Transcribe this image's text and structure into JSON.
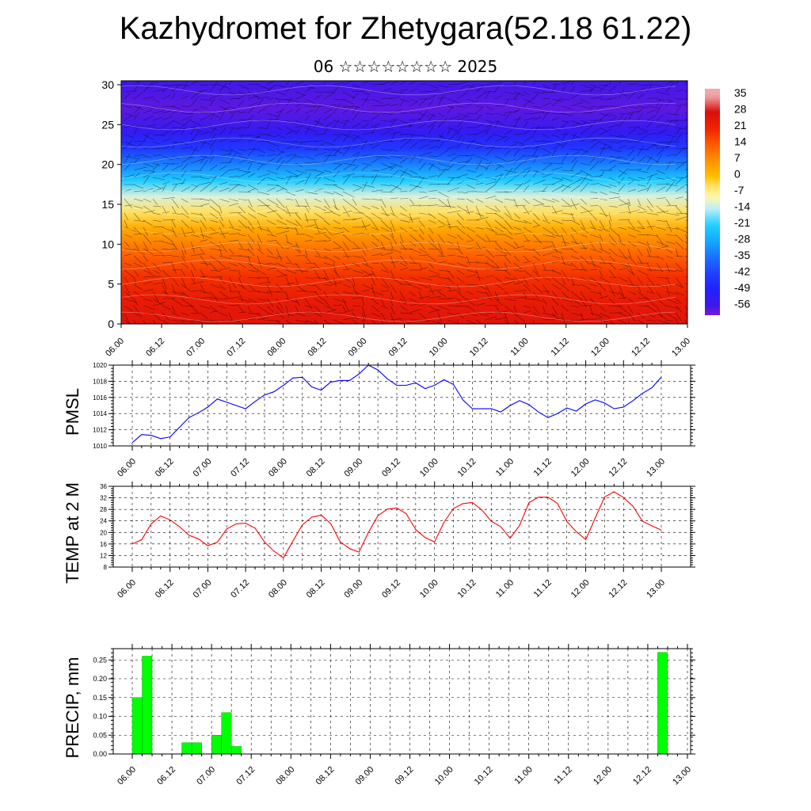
{
  "title": "Kazhydromet for Zhetygara(52.18 61.22)",
  "subtitle": "06 ☆☆☆☆☆☆☆☆ 2025",
  "time_labels": [
    "06.00",
    "06.12",
    "07.00",
    "07.12",
    "08.00",
    "08.12",
    "09.00",
    "09.12",
    "10.00",
    "10.12",
    "11.00",
    "11.12",
    "12.00",
    "12.12",
    "13.00"
  ],
  "colors": {
    "pmsl_line": "#0000ff",
    "temp_line": "#ff0000",
    "precip_bar": "#00ff00"
  },
  "chart_data": [
    {
      "type": "heatmap",
      "title": "",
      "xlabel": "",
      "ylabel": "",
      "x_ticks": [
        "06.00",
        "06.12",
        "07.00",
        "07.12",
        "08.00",
        "08.12",
        "09.00",
        "09.12",
        "10.00",
        "10.12",
        "11.00",
        "11.12",
        "12.00",
        "12.12",
        "13.00"
      ],
      "y_ticks": [
        0,
        5,
        10,
        15,
        20,
        25,
        30
      ],
      "ylim": [
        0,
        30.5
      ],
      "colorbar_labels": [
        "35",
        "28",
        "21",
        "14",
        "7",
        "0",
        "-7",
        "-14",
        "-21",
        "-28",
        "-35",
        "-42",
        "-49",
        "-56"
      ],
      "vertical_profile": [
        {
          "level": 0,
          "value": 26
        },
        {
          "level": 3,
          "value": 23
        },
        {
          "level": 6,
          "value": 19
        },
        {
          "level": 9,
          "value": 12
        },
        {
          "level": 12,
          "value": 3
        },
        {
          "level": 14,
          "value": -4
        },
        {
          "level": 16,
          "value": -12
        },
        {
          "level": 18,
          "value": -22
        },
        {
          "level": 20,
          "value": -33
        },
        {
          "level": 22,
          "value": -44
        },
        {
          "level": 24,
          "value": -53
        },
        {
          "level": 27,
          "value": -58
        },
        {
          "level": 30.5,
          "value": -56
        }
      ],
      "overlay": "wind vectors"
    },
    {
      "type": "line",
      "ylabel": "PMSL",
      "ylim": [
        1010,
        1020
      ],
      "y_ticks": [
        1010,
        1012,
        1014,
        1016,
        1018,
        1020
      ],
      "x_ticks": [
        "06.00",
        "06.12",
        "07.00",
        "07.12",
        "08.00",
        "08.12",
        "09.00",
        "09.12",
        "10.00",
        "10.12",
        "11.00",
        "11.12",
        "12.00",
        "12.12",
        "13.00"
      ],
      "x_step_hours": 3,
      "series": [
        {
          "values": [
            1010.4,
            1011.4,
            1011.3,
            1010.9,
            1011.1,
            1012.3,
            1013.5,
            1014.1,
            1014.8,
            1015.8,
            1015.4,
            1015.0,
            1014.6,
            1015.5,
            1016.3,
            1016.7,
            1017.5,
            1018.4,
            1018.5,
            1017.3,
            1016.9,
            1017.9,
            1018.1,
            1018.1,
            1018.9,
            1020.0,
            1019.4,
            1018.3,
            1017.5,
            1017.5,
            1017.8,
            1017.1,
            1017.5,
            1018.2,
            1017.6,
            1015.7,
            1014.6,
            1014.6,
            1014.6,
            1014.2,
            1015.0,
            1015.6,
            1015.1,
            1014.2,
            1013.5,
            1014.0,
            1014.7,
            1014.3,
            1015.2,
            1015.7,
            1015.3,
            1014.6,
            1014.8,
            1015.6,
            1016.5,
            1017.2,
            1018.5
          ]
        }
      ]
    },
    {
      "type": "line",
      "ylabel": "TEMP at 2 M",
      "ylim": [
        8,
        36
      ],
      "y_ticks": [
        8,
        12,
        16,
        20,
        24,
        28,
        32,
        36
      ],
      "x_ticks": [
        "06.00",
        "06.12",
        "07.00",
        "07.12",
        "08.00",
        "08.12",
        "09.00",
        "09.12",
        "10.00",
        "10.12",
        "11.00",
        "11.12",
        "12.00",
        "12.12",
        "13.00"
      ],
      "x_step_hours": 3,
      "series": [
        {
          "values": [
            16,
            17.5,
            23,
            25.7,
            24.4,
            22,
            19,
            17.8,
            15.4,
            16.6,
            21.2,
            23,
            23.2,
            21.5,
            16.7,
            13.5,
            11.2,
            17,
            22.6,
            25.3,
            26,
            23.1,
            16.8,
            14.4,
            13.2,
            20,
            25.8,
            28.1,
            28.5,
            26.5,
            21,
            18.2,
            16.7,
            23.5,
            28.3,
            30,
            30.4,
            27.8,
            23.9,
            22,
            18,
            22.5,
            30.4,
            32.2,
            32.2,
            30.1,
            23.8,
            20.3,
            17.5,
            25,
            32.3,
            34.1,
            32.1,
            29.1,
            23.9,
            22.3,
            20.8
          ]
        }
      ]
    },
    {
      "type": "bar",
      "ylabel": "PRECIP, mm",
      "ylim": [
        0,
        0.28
      ],
      "y_ticks": [
        "0.00",
        "0.05",
        "0.10",
        "0.15",
        "0.20",
        "0.25"
      ],
      "x_ticks": [
        "06.00",
        "06.12",
        "07.00",
        "07.12",
        "08.00",
        "08.12",
        "09.00",
        "09.12",
        "10.00",
        "10.12",
        "11.00",
        "11.12",
        "12.00",
        "12.12",
        "13.00"
      ],
      "x_step_hours": 3,
      "series": [
        {
          "values": [
            0.15,
            0.26,
            0,
            0,
            0,
            0.03,
            0.03,
            0,
            0.05,
            0.11,
            0.02,
            0,
            0,
            0,
            0,
            0,
            0,
            0,
            0,
            0,
            0,
            0,
            0,
            0,
            0,
            0,
            0,
            0,
            0,
            0,
            0,
            0,
            0,
            0,
            0,
            0,
            0,
            0,
            0,
            0,
            0,
            0,
            0,
            0,
            0,
            0,
            0,
            0,
            0,
            0,
            0,
            0,
            0,
            0.27,
            0,
            0
          ]
        }
      ]
    }
  ]
}
